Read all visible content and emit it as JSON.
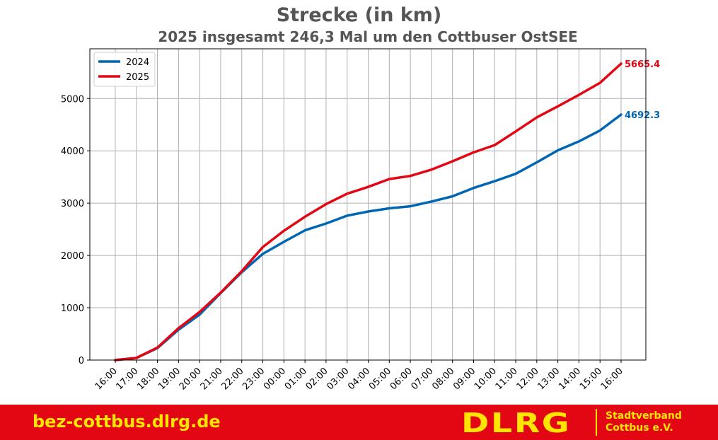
{
  "chart_data": {
    "type": "line",
    "title": "Strecke (in km)",
    "subtitle": "2025 insgesamt 246,3 Mal um den Cottbuser OstSEE",
    "xlabel": "",
    "ylabel": "",
    "categories": [
      "16:00",
      "17:00",
      "18:00",
      "19:00",
      "20:00",
      "21:00",
      "22:00",
      "23:00",
      "00:00",
      "01:00",
      "02:00",
      "03:00",
      "04:00",
      "05:00",
      "06:00",
      "07:00",
      "08:00",
      "09:00",
      "10:00",
      "11:00",
      "12:00",
      "13:00",
      "14:00",
      "15:00",
      "16:00"
    ],
    "series": [
      {
        "name": "2024",
        "color": "#0066b3",
        "values": [
          0,
          40,
          230,
          580,
          870,
          1280,
          1680,
          2030,
          2260,
          2480,
          2610,
          2760,
          2840,
          2900,
          2940,
          3030,
          3130,
          3290,
          3420,
          3560,
          3780,
          4010,
          4180,
          4390,
          4692.3
        ],
        "end_label": "4692.3"
      },
      {
        "name": "2025",
        "color": "#e30613",
        "values": [
          0,
          40,
          240,
          610,
          920,
          1290,
          1700,
          2160,
          2470,
          2740,
          2980,
          3180,
          3310,
          3460,
          3520,
          3640,
          3800,
          3970,
          4110,
          4370,
          4640,
          4850,
          5070,
          5300,
          5665.4
        ],
        "end_label": "5665.4"
      }
    ],
    "yticks": [
      0,
      1000,
      2000,
      3000,
      4000,
      5000
    ],
    "ylim": [
      0,
      5950
    ],
    "grid": true,
    "legend": "top-left"
  },
  "footer": {
    "url": "bez-cottbus.dlrg.de",
    "logo": "DLRG",
    "org_line1": "Stadtverband",
    "org_line2": "Cottbus e.V."
  },
  "colors": {
    "footer_bg": "#e30613",
    "footer_text": "#ffe500",
    "title_text": "#555555"
  }
}
